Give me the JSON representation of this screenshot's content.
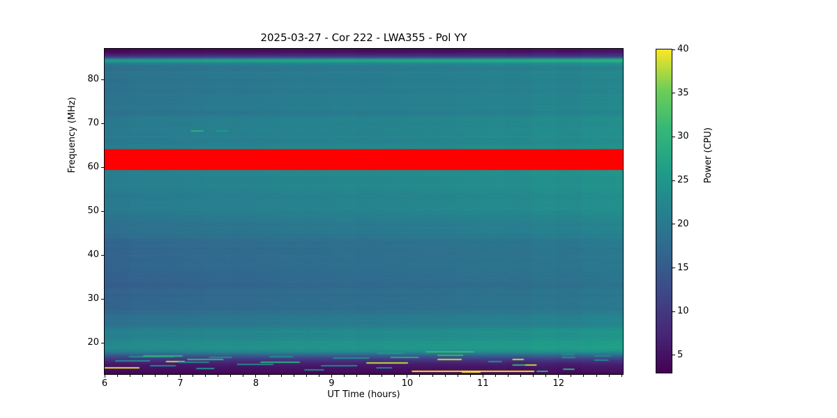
{
  "figure": {
    "background_color": "#ffffff",
    "text_color": "#000000"
  },
  "chart_data": {
    "type": "heatmap",
    "title": "2025-03-27 - Cor 222 - LWA355 - Pol YY",
    "xlabel": "UT Time (hours)",
    "ylabel": "Frequency (MHz)",
    "xlim": [
      6,
      12.85
    ],
    "ylim": [
      12.9,
      87
    ],
    "x_ticks": [
      6,
      7,
      8,
      9,
      10,
      11,
      12
    ],
    "x_minor_tick_step_hours": 0.1666667,
    "y_ticks": [
      20,
      30,
      40,
      50,
      60,
      70,
      80
    ],
    "grid": false,
    "colormap": "viridis",
    "colorbar": {
      "label": "Power (CPU)",
      "ticks": [
        5,
        10,
        15,
        20,
        25,
        30,
        35,
        40
      ],
      "vmin": 3,
      "vmax": 40,
      "position": "right"
    },
    "masked_band": {
      "freq_min_mhz": 59.4,
      "freq_max_mhz": 64.1,
      "color": "#ff0000",
      "spans_full_time_range": true
    },
    "freq_power_profile": [
      [
        87.0,
        3.5
      ],
      [
        86.2,
        4.5
      ],
      [
        85.4,
        8.0
      ],
      [
        84.9,
        14.0
      ],
      [
        84.6,
        24.0
      ],
      [
        84.2,
        26.0
      ],
      [
        83.7,
        21.0
      ],
      [
        83.0,
        19.0
      ],
      [
        80.0,
        18.5
      ],
      [
        76.0,
        19.0
      ],
      [
        72.0,
        19.5
      ],
      [
        68.0,
        20.0
      ],
      [
        65.0,
        20.5
      ],
      [
        64.1,
        21.0
      ],
      [
        59.4,
        21.0
      ],
      [
        57.0,
        21.0
      ],
      [
        53.0,
        20.5
      ],
      [
        50.0,
        20.0
      ],
      [
        47.0,
        18.5
      ],
      [
        44.0,
        17.5
      ],
      [
        42.0,
        17.0
      ],
      [
        38.0,
        16.5
      ],
      [
        34.0,
        16.0
      ],
      [
        30.0,
        16.2
      ],
      [
        27.0,
        17.0
      ],
      [
        24.0,
        19.5
      ],
      [
        22.0,
        21.5
      ],
      [
        20.5,
        23.0
      ],
      [
        19.0,
        23.5
      ],
      [
        18.0,
        21.0
      ],
      [
        17.2,
        15.0
      ],
      [
        16.3,
        10.0
      ],
      [
        15.5,
        7.0
      ],
      [
        14.5,
        5.0
      ],
      [
        13.5,
        4.0
      ],
      [
        12.9,
        3.2
      ]
    ],
    "time_power_gain_max": 3.2,
    "rfi_streaks": [
      [
        6.0,
        6.46,
        14.3,
        39
      ],
      [
        6.14,
        6.6,
        15.9,
        23
      ],
      [
        6.32,
        6.92,
        16.8,
        23
      ],
      [
        6.51,
        7.03,
        17.0,
        30
      ],
      [
        6.6,
        6.94,
        14.8,
        22
      ],
      [
        6.81,
        7.06,
        15.7,
        38
      ],
      [
        6.97,
        7.38,
        15.6,
        22
      ],
      [
        7.09,
        7.57,
        16.2,
        30
      ],
      [
        7.21,
        7.45,
        14.2,
        23
      ],
      [
        7.38,
        7.68,
        16.7,
        23
      ],
      [
        7.75,
        8.23,
        15.2,
        22
      ],
      [
        8.06,
        8.58,
        15.6,
        29
      ],
      [
        8.18,
        8.49,
        16.8,
        23
      ],
      [
        8.64,
        8.9,
        13.8,
        22
      ],
      [
        8.86,
        9.34,
        14.8,
        22
      ],
      [
        9.02,
        9.5,
        16.5,
        23
      ],
      [
        9.46,
        10.01,
        15.4,
        38
      ],
      [
        9.59,
        9.8,
        14.4,
        22
      ],
      [
        9.6,
        9.95,
        17.6,
        25
      ],
      [
        9.78,
        10.15,
        16.7,
        28
      ],
      [
        10.24,
        10.88,
        17.9,
        31
      ],
      [
        10.4,
        10.74,
        17.2,
        30
      ],
      [
        10.4,
        10.72,
        16.3,
        38
      ],
      [
        10.06,
        11.68,
        13.6,
        40
      ],
      [
        10.72,
        10.97,
        13.4,
        40
      ],
      [
        11.07,
        11.25,
        15.8,
        23
      ],
      [
        11.39,
        11.54,
        16.3,
        38
      ],
      [
        11.39,
        11.56,
        14.9,
        30
      ],
      [
        11.56,
        11.71,
        14.9,
        38
      ],
      [
        11.71,
        11.86,
        13.6,
        30
      ],
      [
        12.04,
        12.22,
        16.7,
        23
      ],
      [
        12.04,
        12.2,
        17.4,
        23
      ],
      [
        12.06,
        12.21,
        14.0,
        29
      ],
      [
        12.47,
        12.66,
        16.0,
        22
      ],
      [
        12.47,
        12.7,
        17.1,
        22
      ],
      [
        12.66,
        12.8,
        17.9,
        23
      ],
      [
        7.14,
        7.31,
        68.2,
        29
      ],
      [
        7.47,
        7.64,
        68.2,
        25
      ]
    ]
  }
}
